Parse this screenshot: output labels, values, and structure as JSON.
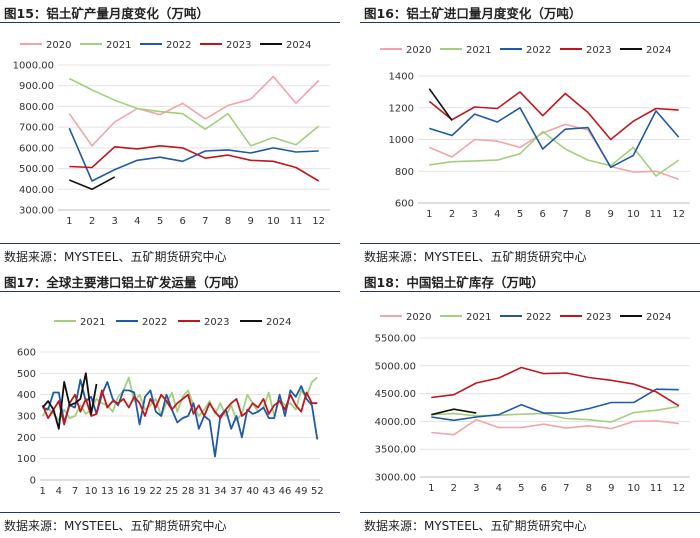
{
  "colors": {
    "y2020": "#f2a5a9",
    "y2021": "#a3cf7f",
    "y2022": "#1f5aa6",
    "y2023": "#c0171e",
    "y2024": "#111111"
  },
  "chart_data": [
    {
      "type": "line",
      "title": "图15：铝土矿产量月度变化（万吨）",
      "source": "数据来源：MYSTEEL、五矿期货研究中心",
      "ylim": [
        300,
        1000
      ],
      "yticks": [
        "300.00",
        "400.00",
        "500.00",
        "600.00",
        "700.00",
        "800.00",
        "900.00",
        "1000.00"
      ],
      "xticks": [
        "1",
        "2",
        "3",
        "4",
        "5",
        "6",
        "7",
        "8",
        "9",
        "10",
        "11",
        "12"
      ],
      "legend_position": "top",
      "series": [
        {
          "name": "2020",
          "color": "#f2a5a9",
          "values": [
            765,
            610,
            725,
            790,
            760,
            815,
            740,
            805,
            835,
            945,
            815,
            925
          ]
        },
        {
          "name": "2021",
          "color": "#a3cf7f",
          "values": [
            935,
            880,
            830,
            790,
            775,
            765,
            690,
            765,
            610,
            650,
            615,
            705
          ]
        },
        {
          "name": "2022",
          "color": "#1f5aa6",
          "values": [
            695,
            440,
            495,
            540,
            555,
            535,
            585,
            590,
            575,
            600,
            580,
            585
          ]
        },
        {
          "name": "2023",
          "color": "#c0171e",
          "values": [
            510,
            505,
            605,
            595,
            610,
            600,
            550,
            565,
            540,
            535,
            505,
            440
          ]
        },
        {
          "name": "2024",
          "color": "#111111",
          "values": [
            445,
            400,
            460
          ]
        }
      ]
    },
    {
      "type": "line",
      "title": "图16：铝土矿进口量月度变化（万吨）",
      "source": "数据来源：MYSTEEL、五矿期货研究中心",
      "ylim": [
        600,
        1400
      ],
      "yticks": [
        "600",
        "800",
        "1000",
        "1200",
        "1400"
      ],
      "xticks": [
        "1",
        "2",
        "3",
        "4",
        "5",
        "6",
        "7",
        "8",
        "9",
        "10",
        "11",
        "12"
      ],
      "legend_position": "top",
      "series": [
        {
          "name": "2020",
          "color": "#f2a5a9",
          "values": [
            950,
            890,
            1000,
            990,
            950,
            1040,
            1095,
            1060,
            830,
            795,
            800,
            750
          ]
        },
        {
          "name": "2021",
          "color": "#a3cf7f",
          "values": [
            840,
            860,
            865,
            870,
            910,
            1050,
            940,
            870,
            835,
            950,
            770,
            870
          ]
        },
        {
          "name": "2022",
          "color": "#1f5aa6",
          "values": [
            1070,
            1025,
            1160,
            1110,
            1200,
            940,
            1065,
            1075,
            825,
            900,
            1180,
            1015
          ]
        },
        {
          "name": "2023",
          "color": "#c0171e",
          "values": [
            1240,
            1125,
            1205,
            1195,
            1300,
            1150,
            1290,
            1170,
            1000,
            1115,
            1195,
            1185
          ]
        },
        {
          "name": "2024",
          "color": "#111111",
          "values": [
            1320,
            1120
          ]
        }
      ]
    },
    {
      "type": "line",
      "title": "图17：全球主要港口铝土矿发运量（万吨）",
      "source": "数据来源：MYSTEEL、五矿期货研究中心",
      "ylim": [
        0,
        600
      ],
      "yticks": [
        "0",
        "100",
        "200",
        "300",
        "400",
        "500",
        "600"
      ],
      "xticks": [
        "1",
        "4",
        "7",
        "10",
        "13",
        "16",
        "19",
        "22",
        "25",
        "28",
        "31",
        "34",
        "37",
        "40",
        "43",
        "46",
        "49",
        "52"
      ],
      "legend_position": "top",
      "series": [
        {
          "name": "2021",
          "color": "#a3cf7f",
          "values": [
            300,
            340,
            310,
            280,
            330,
            290,
            300,
            350,
            310,
            330,
            380,
            360,
            350,
            320,
            390,
            420,
            480,
            370,
            400,
            330,
            350,
            380,
            300,
            360,
            410,
            320,
            390,
            420,
            350,
            300,
            330,
            370,
            310,
            360,
            300,
            350,
            280,
            310,
            400,
            360,
            320,
            340,
            410,
            300,
            380,
            350,
            360,
            330,
            420,
            390,
            460,
            480
          ]
        },
        {
          "name": "2022",
          "color": "#1f5aa6",
          "values": [
            340,
            330,
            410,
            410,
            270,
            350,
            340,
            470,
            370,
            390,
            310,
            400,
            460,
            380,
            350,
            420,
            420,
            410,
            260,
            390,
            420,
            320,
            300,
            400,
            330,
            270,
            290,
            300,
            360,
            240,
            300,
            280,
            110,
            300,
            330,
            240,
            300,
            200,
            330,
            310,
            320,
            340,
            290,
            290,
            400,
            300,
            420,
            390,
            440,
            380,
            350,
            190
          ]
        },
        {
          "name": "2023",
          "color": "#c0171e",
          "values": [
            350,
            290,
            330,
            370,
            260,
            360,
            400,
            320,
            380,
            300,
            310,
            420,
            340,
            370,
            360,
            380,
            340,
            390,
            360,
            300,
            380,
            340,
            400,
            370,
            330,
            360,
            380,
            400,
            310,
            350,
            300,
            360,
            320,
            290,
            330,
            360,
            380,
            300,
            320,
            360,
            340,
            380,
            310,
            350,
            370,
            330,
            400,
            350,
            320,
            410,
            360,
            360
          ]
        },
        {
          "name": "2024",
          "color": "#111111",
          "values": [
            340,
            370,
            330,
            240,
            460,
            350,
            360,
            380,
            500,
            310,
            450
          ]
        }
      ]
    },
    {
      "type": "line",
      "title": "图18：中国铝土矿库存（万吨）",
      "source": "数据来源：MYSTEEL、五矿期货研究中心",
      "ylim": [
        3000,
        5500
      ],
      "yticks": [
        "3000.00",
        "3500.00",
        "4000.00",
        "4500.00",
        "5000.00",
        "5500.00"
      ],
      "xticks": [
        "1",
        "2",
        "3",
        "4",
        "5",
        "6",
        "7",
        "8",
        "9",
        "10",
        "11",
        "12"
      ],
      "legend_position": "top",
      "series": [
        {
          "name": "2020",
          "color": "#f2a5a9",
          "values": [
            3800,
            3760,
            4030,
            3890,
            3890,
            3950,
            3880,
            3920,
            3870,
            4000,
            4010,
            3960
          ]
        },
        {
          "name": "2021",
          "color": "#a3cf7f",
          "values": [
            4120,
            4140,
            4100,
            4110,
            4130,
            4140,
            4050,
            4030,
            3990,
            4160,
            4200,
            4270
          ]
        },
        {
          "name": "2022",
          "color": "#1f5aa6",
          "values": [
            4080,
            4020,
            4080,
            4120,
            4300,
            4150,
            4150,
            4230,
            4340,
            4340,
            4580,
            4570
          ]
        },
        {
          "name": "2023",
          "color": "#c0171e",
          "values": [
            4430,
            4480,
            4690,
            4780,
            4970,
            4860,
            4870,
            4790,
            4740,
            4670,
            4530,
            4280
          ]
        },
        {
          "name": "2024",
          "color": "#111111",
          "values": [
            4120,
            4220,
            4150
          ]
        }
      ]
    }
  ]
}
